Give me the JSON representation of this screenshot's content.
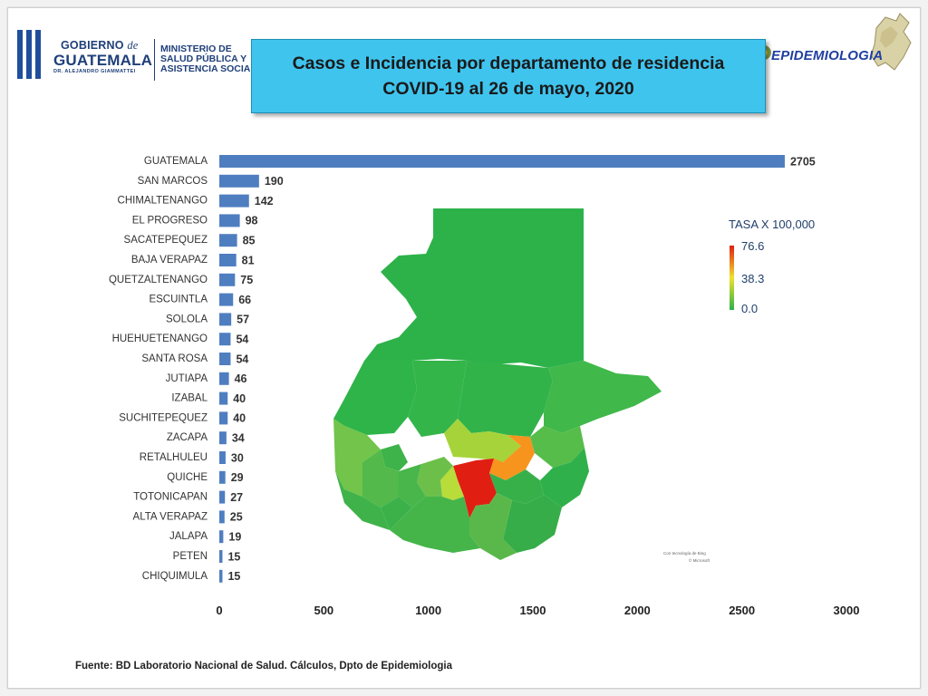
{
  "header": {
    "gobierno_line1": "GOBIERNO",
    "gobierno_de": "de",
    "gobierno_line2": "GUATEMALA",
    "gobierno_line3": "DR. ALEJANDRO GIAMMATTEI",
    "ministerio_lines": [
      "MINISTERIO DE",
      "SALUD PÚBLICA Y",
      "ASISTENCIA SOCIAL"
    ],
    "title_line1": "Casos e Incidencia por departamento de residencia",
    "title_line2": "COVID-19 al 26 de mayo, 2020",
    "epi_logo": "EPIDEMIOLOGIA"
  },
  "colors": {
    "bar": "#4f7ec0",
    "title_bg": "#3fc4ee",
    "brand_blue": "#1f3f7a",
    "map_low": "#2db24a",
    "map_mid": "#f0e12c",
    "map_high": "#e01f12"
  },
  "chart_data": [
    {
      "type": "bar",
      "orientation": "horizontal",
      "categories": [
        "GUATEMALA",
        "SAN MARCOS",
        "CHIMALTENANGO",
        "EL PROGRESO",
        "SACATEPEQUEZ",
        "BAJA VERAPAZ",
        "QUETZALTENANGO",
        "ESCUINTLA",
        "SOLOLA",
        "HUEHUETENANGO",
        "SANTA ROSA",
        "JUTIAPA",
        "IZABAL",
        "SUCHITEPEQUEZ",
        "ZACAPA",
        "RETALHULEU",
        "QUICHE",
        "TOTONICAPAN",
        "ALTA VERAPAZ",
        "JALAPA",
        "PETEN",
        "CHIQUIMULA"
      ],
      "values": [
        2705,
        190,
        142,
        98,
        85,
        81,
        75,
        66,
        57,
        54,
        54,
        46,
        40,
        40,
        34,
        30,
        29,
        27,
        25,
        19,
        15,
        15
      ],
      "xlim": [
        0,
        3000
      ],
      "xticks": [
        0,
        500,
        1000,
        1500,
        2000,
        2500,
        3000
      ],
      "grid": false,
      "data_labels": true
    },
    {
      "type": "choropleth",
      "region": "Guatemala departments",
      "legend_title": "TASA X 100,000",
      "legend_values": [
        "76.6",
        "38.3",
        "0.0"
      ],
      "legend_position": "right",
      "attribution": [
        "Con tecnología de Bing",
        "© Microsoft"
      ]
    }
  ],
  "footer": {
    "source": "Fuente: BD Laboratorio Nacional de Salud. Cálculos, Dpto de Epidemiologia"
  }
}
